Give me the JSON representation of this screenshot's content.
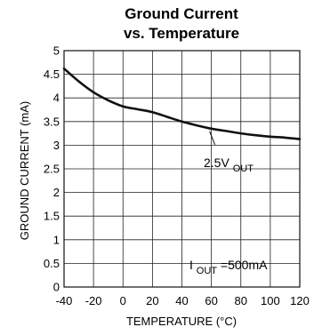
{
  "chart_data": {
    "type": "line",
    "title_line1": "Ground Current",
    "title_line2": "vs. Temperature",
    "xlabel": "TEMPERATURE (°C)",
    "ylabel": "GROUND CURRENT (mA)",
    "xlim": [
      -40,
      120
    ],
    "ylim": [
      0,
      5
    ],
    "x_ticks": [
      -40,
      -20,
      0,
      20,
      40,
      60,
      80,
      100,
      120
    ],
    "y_ticks": [
      0,
      0.5,
      1,
      1.5,
      2,
      2.5,
      3,
      3.5,
      4,
      4.5,
      5
    ],
    "x_tick_labels": [
      "-40",
      "-20",
      "0",
      "20",
      "40",
      "60",
      "80",
      "100",
      "120"
    ],
    "y_tick_labels": [
      "0",
      "0.5",
      "1",
      "1.5",
      "2",
      "2.5",
      "3",
      "3.5",
      "4",
      "4.5",
      "5"
    ],
    "grid": true,
    "series": [
      {
        "x": [
          -40,
          -30,
          -20,
          -10,
          0,
          10,
          20,
          30,
          40,
          50,
          60,
          70,
          80,
          90,
          100,
          110,
          120
        ],
        "y": [
          4.62,
          4.35,
          4.12,
          3.95,
          3.82,
          3.76,
          3.7,
          3.6,
          3.5,
          3.42,
          3.35,
          3.3,
          3.25,
          3.21,
          3.18,
          3.16,
          3.13
        ]
      }
    ],
    "annotations": {
      "series_label_main": "2.5V",
      "series_label_sub": "OUT",
      "current_label_main": "I",
      "current_label_sub": "OUT",
      "current_label_rest": "=500mA"
    }
  }
}
